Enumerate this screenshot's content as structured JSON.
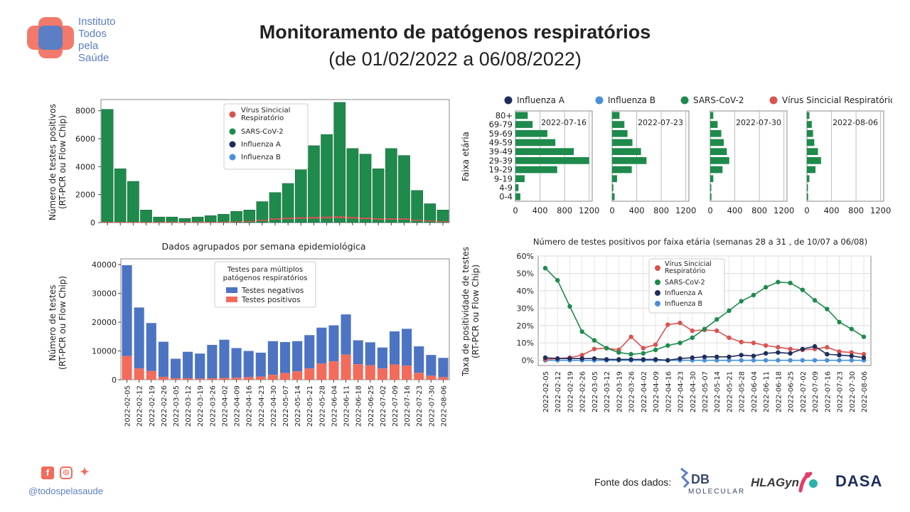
{
  "header": {
    "logo_lines": [
      "Instituto",
      "Todos",
      "pela",
      "Saúde"
    ],
    "title_line1": "Monitoramento de patógenos respiratórios",
    "title_line2": "(de 01/02/2022 a 06/08/2022)"
  },
  "footer": {
    "handle": "@todospelasaude",
    "sources_label": "Fonte dos dados:",
    "brand_db": "DB",
    "brand_db_sub": "MOLECULAR",
    "brand_hla": "HLAGyn",
    "brand_dasa": "DASA",
    "social_icons": [
      "facebook-icon",
      "instagram-icon",
      "twitter-icon"
    ]
  },
  "colors": {
    "influenza_a": "#1f2d5c",
    "influenza_b": "#4a90d9",
    "sars": "#1e8a4c",
    "vsr": "#d9534f",
    "neg": "#4d73c3",
    "pos": "#f26b5b",
    "logo_red": "#f26b5b",
    "logo_blue": "#5b7fc4"
  },
  "chart_data": [
    {
      "id": "positives",
      "type": "bar",
      "ylabel": "Número de testes positivos\n(RT-PCR ou Flow Chip)",
      "ylim": [
        0,
        8800
      ],
      "yticks": [
        0,
        2000,
        4000,
        6000,
        8000
      ],
      "legend": [
        "Vírus Sincicial\nRespiratório",
        "SARS-CoV-2",
        "Influenza A",
        "Influenza B"
      ],
      "legend_placement": "top-center",
      "categories": [
        "2022-02-05",
        "2022-02-12",
        "2022-02-19",
        "2022-02-26",
        "2022-03-05",
        "2022-03-12",
        "2022-03-19",
        "2022-03-26",
        "2022-04-02",
        "2022-04-09",
        "2022-04-16",
        "2022-04-23",
        "2022-04-30",
        "2022-05-07",
        "2022-05-14",
        "2022-05-21",
        "2022-05-28",
        "2022-06-04",
        "2022-06-11",
        "2022-06-18",
        "2022-06-25",
        "2022-07-02",
        "2022-07-09",
        "2022-07-16",
        "2022-07-23",
        "2022-07-30",
        "2022-08-06"
      ],
      "series": [
        {
          "name": "SARS-CoV-2",
          "values": [
            8100,
            3850,
            2950,
            900,
            400,
            400,
            300,
            400,
            500,
            600,
            800,
            900,
            1500,
            2150,
            2800,
            3900,
            5500,
            6300,
            8600,
            5300,
            4900,
            3850,
            5300,
            4800,
            2300,
            1350,
            900
          ]
        },
        {
          "name": "Vírus Sincicial Respiratório",
          "values": [
            50,
            40,
            40,
            30,
            50,
            60,
            40,
            60,
            40,
            60,
            90,
            120,
            200,
            300,
            350,
            380,
            400,
            420,
            450,
            400,
            350,
            300,
            300,
            300,
            200,
            150,
            100
          ]
        }
      ]
    },
    {
      "id": "tests",
      "type": "bar",
      "title": "Dados agrupados por semana epidemiológica",
      "ylabel": "Número de testes\n(RT-PCR ou Flow Chip)",
      "ylim": [
        0,
        42000
      ],
      "yticks": [
        0,
        10000,
        20000,
        30000,
        40000
      ],
      "legend_title": "Testes para múltiplos\npatógenos respiratórios",
      "legend": [
        "Testes negativos",
        "Testes positivos"
      ],
      "legend_placement": "top-center",
      "categories": [
        "2022-02-05",
        "2022-02-12",
        "2022-02-19",
        "2022-02-26",
        "2022-03-05",
        "2022-03-12",
        "2022-03-19",
        "2022-03-26",
        "2022-04-02",
        "2022-04-09",
        "2022-04-16",
        "2022-04-23",
        "2022-04-30",
        "2022-05-07",
        "2022-05-14",
        "2022-05-21",
        "2022-05-28",
        "2022-06-04",
        "2022-06-11",
        "2022-06-18",
        "2022-06-25",
        "2022-07-02",
        "2022-07-09",
        "2022-07-16",
        "2022-07-23",
        "2022-07-30",
        "2022-08-06"
      ],
      "series": [
        {
          "name": "Testes negativos",
          "values": [
            31600,
            21200,
            16700,
            12200,
            6800,
            9200,
            8700,
            11600,
            13300,
            10300,
            9100,
            8300,
            11700,
            10800,
            10500,
            11600,
            12500,
            12500,
            14000,
            8300,
            8000,
            7300,
            11500,
            12800,
            9200,
            7200,
            6700
          ]
        },
        {
          "name": "Testes positivos",
          "values": [
            8200,
            3900,
            3000,
            1000,
            500,
            500,
            400,
            500,
            600,
            700,
            900,
            1100,
            1700,
            2300,
            2900,
            3900,
            5600,
            6400,
            8700,
            5400,
            5000,
            3900,
            5300,
            4900,
            2400,
            1400,
            900
          ]
        }
      ]
    },
    {
      "id": "age",
      "type": "bar",
      "ylabel": "Faixa etária",
      "legend": [
        "Influenza A",
        "Influenza B",
        "SARS-CoV-2",
        "Vírus Sincicial Respiratório"
      ],
      "legend_placement": "top",
      "age_groups": [
        "80+",
        "69-79",
        "59-69",
        "49-59",
        "39-49",
        "29-39",
        "19-29",
        "9-19",
        "4-9",
        "0-4"
      ],
      "xlim": [
        0,
        1250
      ],
      "xticks": [
        0,
        400,
        800,
        1200
      ],
      "panels": [
        {
          "date": "2022-07-16",
          "values": [
            200,
            280,
            520,
            650,
            950,
            1200,
            680,
            150,
            50,
            80
          ]
        },
        {
          "date": "2022-07-23",
          "values": [
            120,
            200,
            250,
            330,
            470,
            560,
            320,
            80,
            20,
            40
          ]
        },
        {
          "date": "2022-07-30",
          "values": [
            50,
            120,
            180,
            220,
            270,
            310,
            200,
            50,
            10,
            20
          ]
        },
        {
          "date": "2022-08-06",
          "values": [
            40,
            80,
            100,
            120,
            180,
            230,
            140,
            40,
            5,
            20
          ]
        }
      ]
    },
    {
      "id": "positivity",
      "type": "line",
      "title": "Número de testes positivos por faixa etária (semanas 28 a 31 , de 10/07 a 06/08)",
      "ylabel": "Taxa de positividade de testes\n(RT-PCR ou Flow Chip)",
      "ylim": [
        -3,
        60
      ],
      "yticks": [
        "0%",
        "10%",
        "20%",
        "30%",
        "40%",
        "50%",
        "60%"
      ],
      "grid": true,
      "legend": [
        "Vírus Sincicial\nRespiratório",
        "SARS-CoV-2",
        "Influenza A",
        "Influenza B"
      ],
      "legend_placement": "top-center",
      "x": [
        "2022-02-05",
        "2022-02-12",
        "2022-02-19",
        "2022-02-26",
        "2022-03-05",
        "2022-03-12",
        "2022-03-19",
        "2022-03-26",
        "2022-04-02",
        "2022-04-09",
        "2022-04-16",
        "2022-04-23",
        "2022-04-30",
        "2022-05-07",
        "2022-05-14",
        "2022-05-21",
        "2022-05-28",
        "2022-06-04",
        "2022-06-11",
        "2022-06-18",
        "2022-06-25",
        "2022-07-02",
        "2022-07-09",
        "2022-07-16",
        "2022-07-23",
        "2022-07-30",
        "2022-08-06"
      ],
      "series": [
        {
          "name": "SARS-CoV-2",
          "values": [
            53,
            46,
            31,
            16.5,
            11.5,
            7,
            4.5,
            3.5,
            4,
            6,
            8.5,
            10,
            13,
            18,
            23.5,
            28.5,
            34,
            37.5,
            42,
            45,
            44.5,
            40.5,
            34.5,
            29.5,
            22,
            18,
            13.5
          ]
        },
        {
          "name": "Vírus Sincicial Respiratório",
          "values": [
            0.5,
            1,
            1.5,
            3,
            6.5,
            7,
            6,
            13.5,
            7,
            9,
            20.5,
            21.5,
            17,
            17.5,
            17,
            13,
            10.5,
            10,
            8.5,
            7.5,
            6.5,
            6,
            6.5,
            7.5,
            5,
            4.5,
            3.5
          ]
        },
        {
          "name": "Influenza A",
          "values": [
            1.5,
            1,
            1,
            1,
            1,
            0.5,
            0.5,
            0.5,
            0.5,
            0.5,
            0,
            1,
            1.5,
            2,
            2,
            2,
            3,
            2.5,
            4,
            4.5,
            4,
            6.5,
            8,
            3.5,
            3,
            2.5,
            1.5
          ]
        },
        {
          "name": "Influenza B",
          "values": [
            0,
            0,
            0,
            0,
            0,
            0,
            0,
            0,
            0,
            0,
            0,
            0,
            0,
            0,
            0,
            0,
            0,
            0,
            0,
            0,
            0,
            0,
            0,
            0,
            0,
            0,
            0
          ]
        }
      ]
    }
  ]
}
